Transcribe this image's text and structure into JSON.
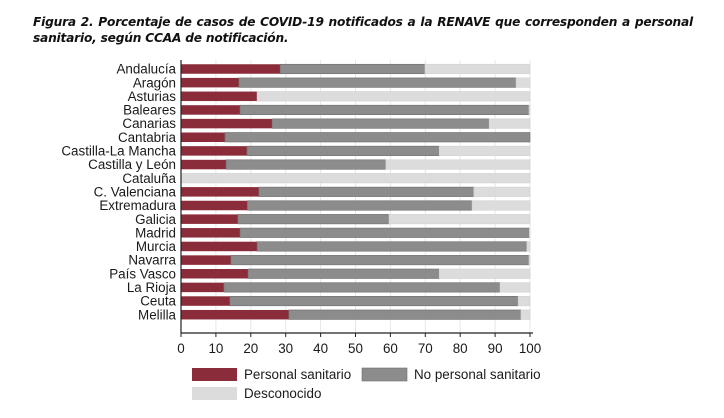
{
  "caption": "Figura 2. Porcentaje de casos de COVID-19 notificados a la RENAVE que corresponden a personal sanitario, según CCAA de notificación.",
  "chart_data": {
    "type": "bar",
    "orientation": "horizontal",
    "stacked": true,
    "title": "Figura 2. Porcentaje de casos de COVID-19 notificados a la RENAVE que corresponden a personal sanitario, según CCAA de notificación.",
    "xlabel": "",
    "ylabel": "",
    "xlim": [
      0,
      100
    ],
    "xticks": [
      0,
      10,
      20,
      30,
      40,
      50,
      60,
      70,
      80,
      90,
      100
    ],
    "grid": true,
    "legend_position": "bottom",
    "categories": [
      "Andalucía",
      "Aragón",
      "Asturias",
      "Baleares",
      "Canarias",
      "Cantabria",
      "Castilla-La Mancha",
      "Castilla y León",
      "Cataluña",
      "C. Valenciana",
      "Extremadura",
      "Galicia",
      "Madrid",
      "Murcia",
      "Navarra",
      "País Vasco",
      "La Rioja",
      "Ceuta",
      "Melilla"
    ],
    "series": [
      {
        "name": "Personal sanitario",
        "color": "#8b2c3a",
        "values": [
          28.4,
          16.6,
          21.8,
          16.9,
          26.1,
          12.6,
          18.9,
          12.9,
          0,
          22.3,
          19.0,
          16.3,
          16.9,
          21.8,
          14.3,
          19.2,
          12.3,
          14.0,
          30.9
        ]
      },
      {
        "name": "No personal sanitario",
        "color": "#8c8c8c",
        "values": [
          41.5,
          79.4,
          0,
          82.8,
          62.2,
          87.4,
          55.1,
          45.8,
          0,
          61.6,
          64.4,
          43.3,
          82.9,
          77.3,
          85.4,
          54.8,
          79.1,
          82.6,
          66.5
        ]
      },
      {
        "name": "Desconocido",
        "color": "#dcdcdc",
        "values": [
          30.1,
          4.0,
          78.2,
          0.3,
          11.7,
          0,
          26.0,
          41.3,
          100,
          16.1,
          16.6,
          40.4,
          0.2,
          0.9,
          0.3,
          26.0,
          8.6,
          3.4,
          2.6
        ]
      }
    ]
  },
  "legend": [
    {
      "label": "Personal sanitario",
      "color": "#8b2c3a"
    },
    {
      "label": "No personal sanitario",
      "color": "#8c8c8c"
    },
    {
      "label": "Desconocido",
      "color": "#dcdcdc"
    }
  ]
}
